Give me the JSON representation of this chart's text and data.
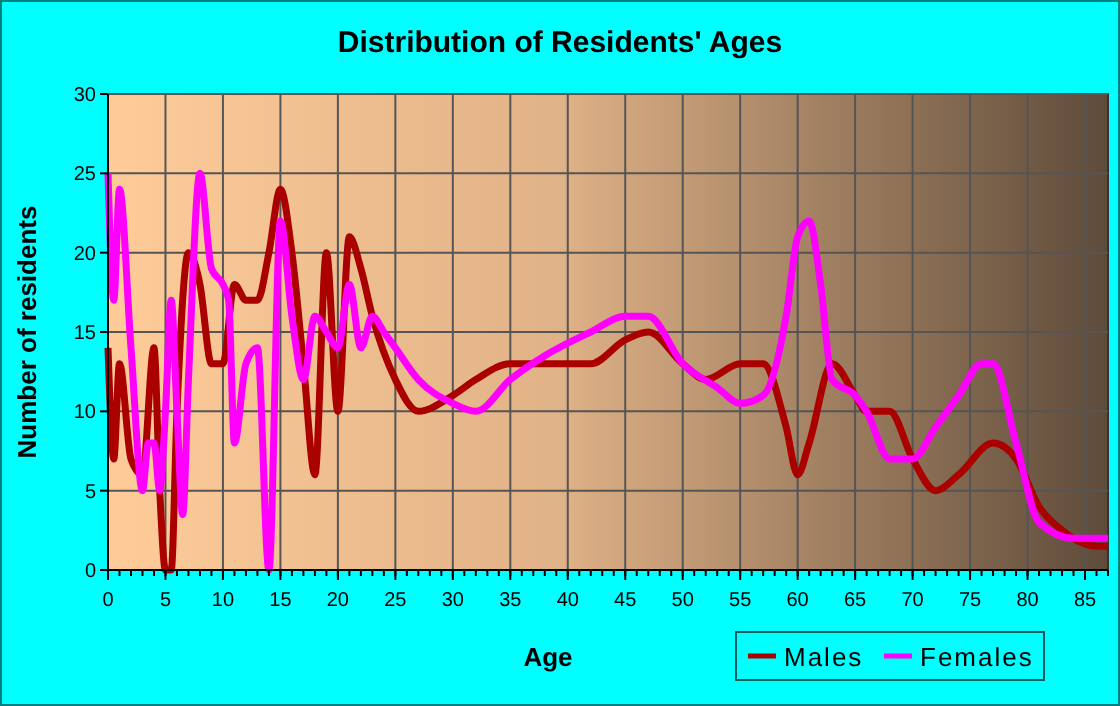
{
  "chart_data": {
    "type": "line",
    "title": "Distribution of Residents' Ages",
    "xlabel": "Age",
    "ylabel": "Number of residents",
    "xlim": [
      0,
      87
    ],
    "xticks": [
      0,
      5,
      10,
      15,
      20,
      25,
      30,
      35,
      40,
      45,
      50,
      55,
      60,
      65,
      70,
      75,
      80,
      85
    ],
    "ylim": [
      0,
      30
    ],
    "yticks": [
      0,
      5,
      10,
      15,
      20,
      25,
      30
    ],
    "grid": true,
    "legend": "bottom right",
    "series": [
      {
        "name": "Males",
        "color": "#aa0000",
        "x": [
          0,
          0.5,
          1,
          2,
          3,
          4,
          4.5,
          5,
          5.5,
          6,
          7,
          8,
          9,
          10,
          11,
          12,
          13,
          14,
          15,
          16,
          17,
          18,
          19,
          20,
          21,
          22,
          23,
          25,
          27,
          30,
          32,
          35,
          38,
          42,
          45,
          47,
          50,
          52,
          55,
          57,
          59,
          60,
          61,
          63,
          65,
          66,
          68,
          70,
          72,
          74,
          77,
          79,
          81,
          83,
          86,
          87
        ],
        "values": [
          14,
          7,
          13,
          7,
          6,
          14,
          5,
          0,
          0,
          10,
          20,
          18,
          13,
          13,
          18,
          17,
          17,
          20,
          24,
          20,
          13,
          6,
          20,
          10,
          21,
          19,
          16,
          12,
          10,
          11,
          12,
          13,
          13,
          13,
          14.5,
          15,
          13,
          12,
          13,
          13,
          9,
          6,
          8,
          13,
          11,
          10,
          10,
          7,
          5,
          6,
          8,
          7,
          4,
          2.5,
          1.5,
          1.5
        ]
      },
      {
        "name": "Females",
        "color": "#ff00ff",
        "x": [
          0,
          0.5,
          1,
          2,
          3,
          3.5,
          4,
          4.5,
          5,
          5.5,
          6,
          6.5,
          7,
          8,
          9,
          10,
          10.5,
          11,
          12,
          13,
          14,
          15,
          16,
          17,
          18,
          19,
          20,
          21,
          22,
          23,
          24,
          25,
          27,
          30,
          32,
          35,
          38,
          42,
          45,
          47,
          50,
          53,
          55,
          57,
          59,
          60,
          61,
          62,
          63,
          65,
          66,
          68,
          70,
          72,
          74,
          76,
          77,
          79,
          81,
          84,
          87
        ],
        "values": [
          25,
          17,
          24,
          14,
          5,
          8,
          8,
          5,
          10,
          17,
          10,
          3.5,
          12,
          25,
          19,
          18,
          17,
          8,
          13,
          14,
          0,
          22,
          16,
          12,
          16,
          15,
          14,
          18,
          14,
          16,
          15,
          14,
          12,
          10.5,
          10,
          12,
          13.5,
          15,
          16,
          16,
          13,
          11.5,
          10.5,
          11,
          16,
          21,
          22,
          18,
          12,
          11,
          10,
          7,
          7,
          9,
          11,
          13,
          13,
          8,
          3,
          2,
          2
        ]
      }
    ]
  }
}
